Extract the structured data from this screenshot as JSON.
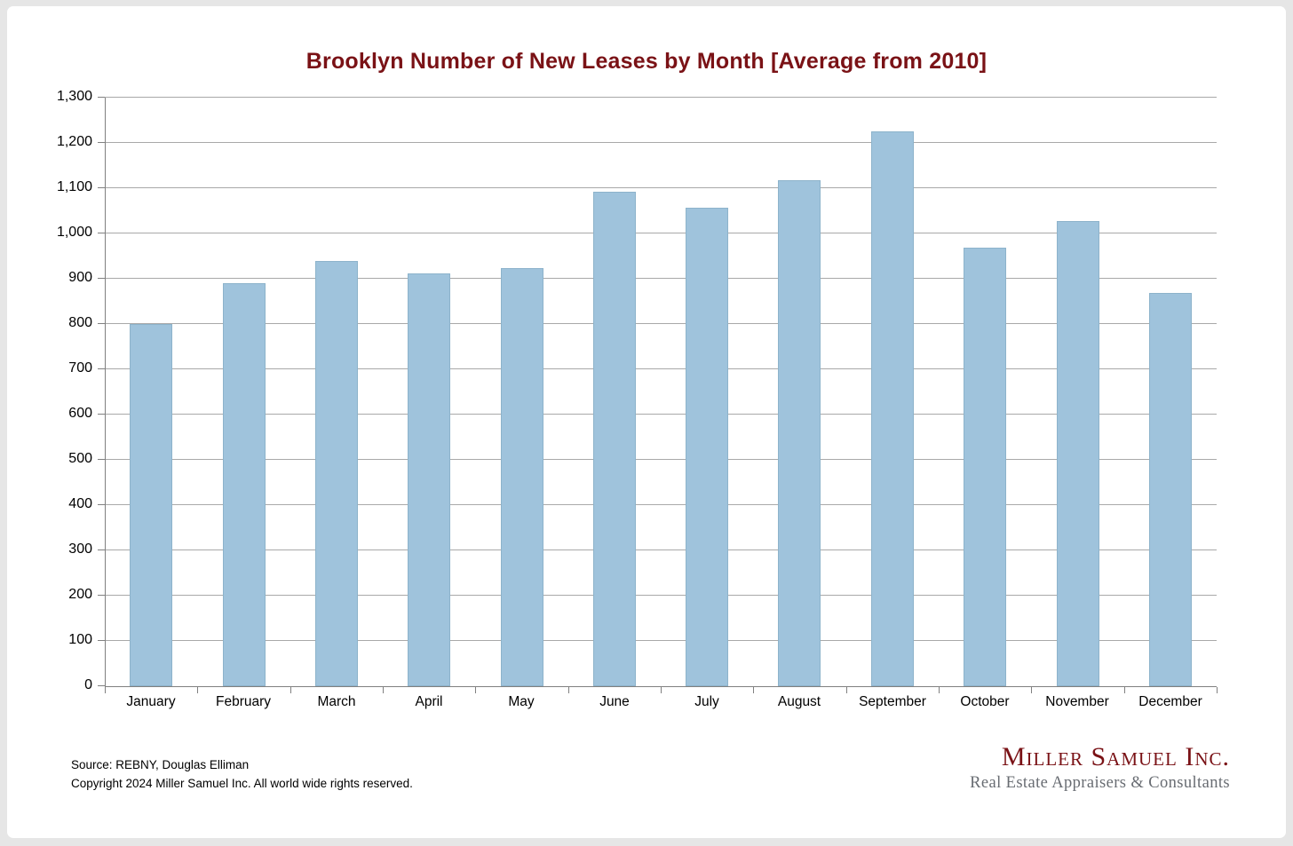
{
  "page": {
    "background_color": "#e6e6e6",
    "card_color": "#ffffff"
  },
  "chart_data": {
    "type": "bar",
    "title": "Brooklyn Number of New Leases by Month [Average from 2010]",
    "categories": [
      "January",
      "February",
      "March",
      "April",
      "May",
      "June",
      "July",
      "August",
      "September",
      "October",
      "November",
      "December"
    ],
    "values": [
      800,
      890,
      940,
      911,
      923,
      1092,
      1057,
      1117,
      1225,
      968,
      1028,
      869
    ],
    "xlabel": "",
    "ylabel": "",
    "ylim": [
      0,
      1300
    ],
    "ytick_step": 100,
    "grid": true,
    "legend_position": "none",
    "colors": {
      "title": "#7a1216",
      "bar_fill": "#9fc3dc",
      "bar_border": "#8db3cb",
      "gridline": "#a9a9a9",
      "axis": "#808080",
      "tick": "#808080",
      "label_text": "#000000"
    }
  },
  "footer": {
    "source_line": "Source: REBNY, Douglas Elliman",
    "copyright_line": "Copyright 2024 Miller Samuel Inc.  All world wide rights reserved."
  },
  "logo": {
    "name": "Miller Samuel Inc.",
    "subtitle": "Real Estate Appraisers & Consultants",
    "name_color": "#7a1216",
    "subtitle_color": "#686c72"
  }
}
